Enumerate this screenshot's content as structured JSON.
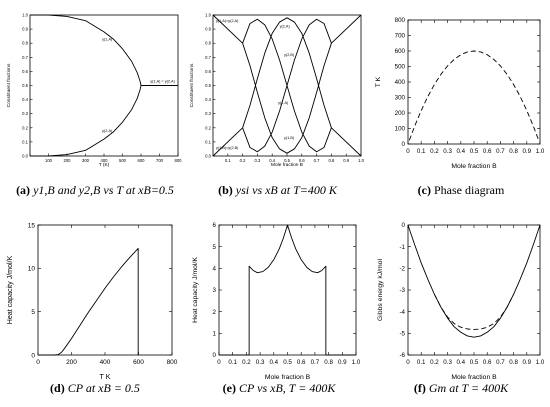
{
  "captions": {
    "a": {
      "tag": "(a)",
      "text": "y1,B and y2,B vs T at xB=0.5"
    },
    "b": {
      "tag": "(b)",
      "text": "ysi vs xB at T=400 K"
    },
    "c": {
      "tag": "(c)",
      "text": "Phase diagram"
    },
    "d": {
      "tag": "(d)",
      "text": "CP at xB = 0.5"
    },
    "e": {
      "tag": "(e)",
      "text": "CP vs xB, T = 400K"
    },
    "f": {
      "tag": "(f)",
      "text": "Gm at T = 400K"
    }
  },
  "chart_data": [
    {
      "id": "a",
      "type": "line",
      "xlabel": "T (K)",
      "ylabel": "Constituent fractions",
      "xlim": [
        0,
        800
      ],
      "ylim": [
        0,
        1.0
      ],
      "xticks": [
        0,
        100,
        200,
        300,
        400,
        500,
        600,
        700,
        800
      ],
      "yticks": [
        0,
        0.1,
        0.2,
        0.3,
        0.4,
        0.5,
        0.6,
        0.7,
        0.8,
        0.9,
        1.0
      ],
      "xtick_labels": [
        "",
        "100",
        "200",
        "300",
        "400",
        "500",
        "600",
        "700",
        "800"
      ],
      "ytick_labels": [
        "0.0",
        "0.1",
        "0.2",
        "0.3",
        "0.4",
        "0.5",
        "0.6",
        "0.7",
        "0.8",
        "0.9",
        "1.0"
      ],
      "annotations": [
        {
          "text": "y(1,A)",
          "x": 390,
          "y": 0.82
        },
        {
          "text": "y(1,A) = y(2,A)",
          "x": 650,
          "y": 0.52
        },
        {
          "text": "y(2,A)",
          "x": 390,
          "y": 0.17
        }
      ],
      "series": [
        {
          "x": [
            0,
            100,
            200,
            300,
            400,
            450,
            500,
            550,
            580,
            595,
            600
          ],
          "y": [
            1.0,
            1.0,
            0.99,
            0.96,
            0.88,
            0.83,
            0.76,
            0.67,
            0.59,
            0.53,
            0.5
          ]
        },
        {
          "x": [
            0,
            100,
            200,
            300,
            400,
            450,
            500,
            550,
            580,
            595,
            600
          ],
          "y": [
            0.0,
            0.0,
            0.01,
            0.04,
            0.12,
            0.17,
            0.24,
            0.33,
            0.41,
            0.47,
            0.5
          ]
        },
        {
          "x": [
            600,
            800
          ],
          "y": [
            0.5,
            0.5
          ]
        }
      ]
    },
    {
      "id": "b",
      "type": "line",
      "xlabel": "Mole fraction B",
      "ylabel": "Constituent fractions",
      "xlim": [
        0,
        1.0
      ],
      "ylim": [
        0,
        1.0
      ],
      "xticks": [
        0.1,
        0.2,
        0.3,
        0.4,
        0.5,
        0.6,
        0.7,
        0.8,
        0.9,
        1.0
      ],
      "yticks": [
        0,
        0.1,
        0.2,
        0.3,
        0.4,
        0.5,
        0.6,
        0.7,
        0.8,
        0.9,
        1.0
      ],
      "xtick_labels": [
        "0.1",
        "0.2",
        "0.3",
        "0.4",
        "0.5",
        "0.6",
        "0.7",
        "0.8",
        "0.9",
        "1.0"
      ],
      "ytick_labels": [
        "0.0",
        "0.1",
        "0.2",
        "0.3",
        "0.4",
        "0.5",
        "0.6",
        "0.7",
        "0.8",
        "0.9",
        "1.0"
      ],
      "annotations": [
        {
          "text": "y(1,A)=y(2,A)",
          "x": 0.02,
          "y": 0.95
        },
        {
          "text": "y(2,A)",
          "x": 0.45,
          "y": 0.91
        },
        {
          "text": "y(2,B)",
          "x": 0.48,
          "y": 0.71
        },
        {
          "text": "y(1,A)",
          "x": 0.44,
          "y": 0.37
        },
        {
          "text": "y(1,B)",
          "x": 0.48,
          "y": 0.12
        },
        {
          "text": "y(1,B)=y(2,B)",
          "x": 0.02,
          "y": 0.05
        }
      ],
      "series": [
        {
          "x": [
            0.0,
            0.2
          ],
          "y": [
            1.0,
            0.8
          ]
        },
        {
          "x": [
            0.0,
            0.2
          ],
          "y": [
            0.0,
            0.2
          ]
        },
        {
          "x": [
            0.8,
            1.0
          ],
          "y": [
            0.8,
            1.0
          ]
        },
        {
          "x": [
            0.8,
            1.0
          ],
          "y": [
            0.2,
            0.0
          ]
        },
        {
          "x": [
            0.2,
            0.25,
            0.3,
            0.35,
            0.4,
            0.45,
            0.5,
            0.55,
            0.6,
            0.65,
            0.7,
            0.75,
            0.8
          ],
          "y": [
            0.8,
            0.94,
            0.97,
            0.93,
            0.83,
            0.68,
            0.5,
            0.32,
            0.17,
            0.07,
            0.03,
            0.06,
            0.2
          ]
        },
        {
          "x": [
            0.2,
            0.25,
            0.3,
            0.35,
            0.4,
            0.45,
            0.5,
            0.55,
            0.6,
            0.65,
            0.7,
            0.75,
            0.8
          ],
          "y": [
            0.2,
            0.06,
            0.03,
            0.07,
            0.17,
            0.32,
            0.5,
            0.68,
            0.83,
            0.93,
            0.97,
            0.94,
            0.8
          ]
        },
        {
          "x": [
            0.2,
            0.25,
            0.3,
            0.35,
            0.4,
            0.45,
            0.5,
            0.55,
            0.6,
            0.65,
            0.7,
            0.75,
            0.8
          ],
          "y": [
            0.2,
            0.36,
            0.55,
            0.73,
            0.87,
            0.95,
            0.98,
            0.95,
            0.87,
            0.73,
            0.55,
            0.36,
            0.2
          ]
        },
        {
          "x": [
            0.2,
            0.25,
            0.3,
            0.35,
            0.4,
            0.45,
            0.5,
            0.55,
            0.6,
            0.65,
            0.7,
            0.75,
            0.8
          ],
          "y": [
            0.8,
            0.64,
            0.45,
            0.27,
            0.13,
            0.05,
            0.02,
            0.05,
            0.13,
            0.27,
            0.45,
            0.64,
            0.8
          ]
        }
      ]
    },
    {
      "id": "c",
      "type": "line",
      "xlabel": "Mole fraction B",
      "ylabel": "T K",
      "xlim": [
        0,
        1.0
      ],
      "ylim": [
        0,
        800
      ],
      "xticks": [
        0,
        0.1,
        0.2,
        0.3,
        0.4,
        0.5,
        0.6,
        0.7,
        0.8,
        0.9,
        1.0
      ],
      "yticks": [
        0,
        100,
        200,
        300,
        400,
        500,
        600,
        700,
        800
      ],
      "xtick_labels": [
        "0",
        "0.1",
        "0.2",
        "0.3",
        "0.4",
        "0.5",
        "0.6",
        "0.7",
        "0.8",
        "0.9",
        "1.0"
      ],
      "ytick_labels": [
        "0",
        "100",
        "200",
        "300",
        "400",
        "500",
        "600",
        "700",
        "800"
      ],
      "series": [
        {
          "dashed": true,
          "x": [
            0.01,
            0.05,
            0.1,
            0.15,
            0.2,
            0.25,
            0.3,
            0.35,
            0.4,
            0.45,
            0.5,
            0.55,
            0.6,
            0.65,
            0.7,
            0.75,
            0.8,
            0.85,
            0.9,
            0.95,
            0.99
          ],
          "y": [
            24,
            114,
            216,
            306,
            384,
            450,
            504,
            546,
            576,
            594,
            600,
            594,
            576,
            546,
            504,
            450,
            384,
            306,
            216,
            114,
            24
          ]
        }
      ]
    },
    {
      "id": "d",
      "type": "line",
      "xlabel": "T K",
      "ylabel": "Heat capacity J/mol/K",
      "xlim": [
        0,
        800
      ],
      "ylim": [
        0,
        15
      ],
      "xticks": [
        0,
        200,
        400,
        600,
        800
      ],
      "yticks": [
        0,
        5,
        10,
        15
      ],
      "xtick_labels": [
        "0",
        "200",
        "400",
        "600",
        "800"
      ],
      "ytick_labels": [
        "0",
        "5",
        "10",
        "15"
      ],
      "series": [
        {
          "x": [
            0,
            100,
            120,
            140,
            160,
            200,
            250,
            300,
            350,
            400,
            450,
            500,
            550,
            598,
            598,
            600
          ],
          "y": [
            0,
            0,
            0.05,
            0.3,
            0.8,
            1.9,
            3.4,
            4.9,
            6.3,
            7.7,
            9.0,
            10.2,
            11.3,
            12.3,
            0,
            0
          ]
        }
      ]
    },
    {
      "id": "e",
      "type": "line",
      "xlabel": "Mole fraction B",
      "ylabel": "Heat capacity J/mol/K",
      "xlim": [
        0,
        1.0
      ],
      "ylim": [
        0,
        6
      ],
      "xticks": [
        0,
        0.1,
        0.2,
        0.3,
        0.4,
        0.5,
        0.6,
        0.7,
        0.8,
        0.9,
        1.0
      ],
      "yticks": [
        0,
        1,
        2,
        3,
        4,
        5,
        6
      ],
      "xtick_labels": [
        "0",
        "0.1",
        "0.2",
        "0.3",
        "0.4",
        "0.5",
        "0.6",
        "0.7",
        "0.8",
        "0.9",
        "1.0"
      ],
      "ytick_labels": [
        "0",
        "1",
        "2",
        "3",
        "4",
        "5",
        "6"
      ],
      "series": [
        {
          "x": [
            0.0,
            0.22,
            0.22,
            0.25,
            0.28,
            0.32,
            0.36,
            0.4,
            0.44,
            0.47,
            0.49,
            0.5,
            0.51,
            0.53,
            0.56,
            0.6,
            0.64,
            0.68,
            0.72,
            0.75,
            0.78,
            0.78,
            1.0
          ],
          "y": [
            0.0,
            0.0,
            4.1,
            3.9,
            3.8,
            3.85,
            4.05,
            4.4,
            4.9,
            5.4,
            5.8,
            6.0,
            5.8,
            5.4,
            4.9,
            4.4,
            4.05,
            3.85,
            3.8,
            3.9,
            4.1,
            0.0,
            0.0
          ]
        }
      ]
    },
    {
      "id": "f",
      "type": "line",
      "xlabel": "Mole fraction B",
      "ylabel": "Gibbs energy kJ/mol",
      "xlim": [
        0,
        1.0
      ],
      "ylim": [
        -6,
        0
      ],
      "xticks": [
        0,
        0.1,
        0.2,
        0.3,
        0.4,
        0.5,
        0.6,
        0.7,
        0.8,
        0.9,
        1.0
      ],
      "yticks": [
        -6,
        -5,
        -4,
        -3,
        -2,
        -1,
        0
      ],
      "xtick_labels": [
        "0",
        "0.1",
        "0.2",
        "0.3",
        "0.4",
        "0.5",
        "0.6",
        "0.7",
        "0.8",
        "0.9",
        "1.0"
      ],
      "ytick_labels": [
        "-6",
        "-5",
        "-4",
        "-3",
        "-2",
        "-1",
        "0"
      ],
      "series": [
        {
          "x": [
            0.0,
            0.05,
            0.1,
            0.15,
            0.2,
            0.25,
            0.3,
            0.35,
            0.4,
            0.45,
            0.5,
            0.55,
            0.6,
            0.65,
            0.7,
            0.75,
            0.8,
            0.85,
            0.9,
            0.95,
            1.0
          ],
          "y": [
            0.0,
            -0.9,
            -1.75,
            -2.5,
            -3.2,
            -3.8,
            -4.3,
            -4.7,
            -4.95,
            -5.12,
            -5.18,
            -5.12,
            -4.95,
            -4.7,
            -4.3,
            -3.8,
            -3.2,
            -2.5,
            -1.75,
            -0.9,
            0.0
          ]
        },
        {
          "dashed": true,
          "x": [
            0.2,
            0.25,
            0.3,
            0.35,
            0.4,
            0.45,
            0.5,
            0.55,
            0.6,
            0.65,
            0.7,
            0.75,
            0.8
          ],
          "y": [
            -3.2,
            -3.8,
            -4.25,
            -4.55,
            -4.72,
            -4.8,
            -4.82,
            -4.8,
            -4.72,
            -4.55,
            -4.25,
            -3.8,
            -3.2
          ]
        }
      ]
    }
  ]
}
